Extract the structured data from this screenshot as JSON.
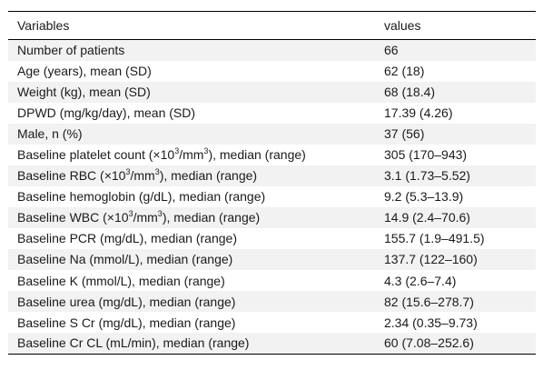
{
  "table": {
    "headers": [
      "Variables",
      "values"
    ],
    "rows": [
      {
        "variable": "Number of patients",
        "value": "66"
      },
      {
        "variable": "Age (years), mean (SD)",
        "value": "62 (18)"
      },
      {
        "variable": "Weight (kg), mean (SD)",
        "value": "68 (18.4)"
      },
      {
        "variable": "DPWD (mg/kg/day), mean (SD)",
        "value": "17.39 (4.26)"
      },
      {
        "variable": "Male, n (%)",
        "value": "37 (56)"
      },
      {
        "variable": "Baseline platelet count (×10³/mm³), median (range)",
        "var_pre": "Baseline platelet count (×10",
        "var_exp1": "3",
        "var_mid": "/mm",
        "var_exp2": "3",
        "var_post": "), median (range)",
        "value": "305 (170–943)"
      },
      {
        "variable": "Baseline RBC (×10³/mm³), median (range)",
        "var_pre": "Baseline RBC (×10",
        "var_exp1": "3",
        "var_mid": "/mm",
        "var_exp2": "3",
        "var_post": "), median (range)",
        "value": "3.1 (1.73–5.52)"
      },
      {
        "variable": "Baseline hemoglobin (g/dL), median (range)",
        "value": "9.2 (5.3–13.9)"
      },
      {
        "variable": "Baseline WBC (×10³/mm³), median (range)",
        "var_pre": "Baseline WBC (×10",
        "var_exp1": "3",
        "var_mid": "/mm",
        "var_exp2": "3",
        "var_post": "), median (range)",
        "value": "14.9 (2.4–70.6)"
      },
      {
        "variable": "Baseline PCR (mg/dL), median (range)",
        "value": "155.7 (1.9–491.5)"
      },
      {
        "variable": "Baseline Na (mmol/L), median (range)",
        "value": "137.7 (122–160)"
      },
      {
        "variable": "Baseline K (mmol/L), median (range)",
        "value": "4.3 (2.6–7.4)"
      },
      {
        "variable": "Baseline urea (mg/dL), median (range)",
        "value": "82 (15.6–278.7)"
      },
      {
        "variable": "Baseline S Cr (mg/dL), median (range)",
        "value": "2.34 (0.35–9.73)"
      },
      {
        "variable": "Baseline Cr CL (mL/min), median (range)",
        "value": "60 (7.08–252.6)"
      }
    ]
  }
}
